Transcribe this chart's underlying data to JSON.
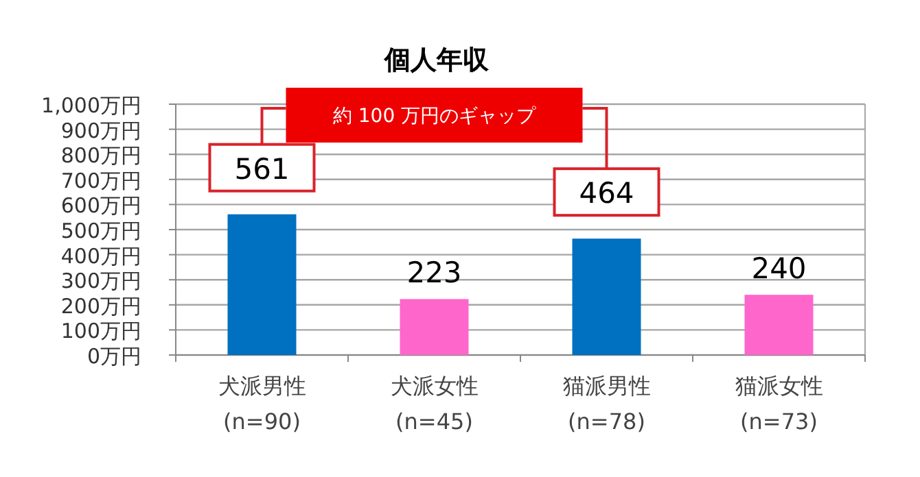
{
  "chart_data": {
    "type": "bar",
    "title": "個人年収",
    "categories": [
      "犬派男性\n(n=90)",
      "犬派女性\n(n=45)",
      "猫派男性\n(n=78)",
      "猫派女性\n(n=73)"
    ],
    "values": [
      561,
      223,
      464,
      240
    ],
    "colors": [
      "#0070c0",
      "#ff66cc",
      "#0070c0",
      "#ff66cc"
    ],
    "ylim": [
      0,
      1000
    ],
    "yticks": [
      {
        "value": 0,
        "label": "0万円"
      },
      {
        "value": 100,
        "label": "100万円"
      },
      {
        "value": 200,
        "label": "200万円"
      },
      {
        "value": 300,
        "label": "300万円"
      },
      {
        "value": 400,
        "label": "400万円"
      },
      {
        "value": 500,
        "label": "500万円"
      },
      {
        "value": 600,
        "label": "600万円"
      },
      {
        "value": 700,
        "label": "700万円"
      },
      {
        "value": 800,
        "label": "800万円"
      },
      {
        "value": 900,
        "label": "900万円"
      },
      {
        "value": 1000,
        "label": "1,000万円"
      }
    ],
    "grid": "y",
    "data_labels": true,
    "annotations": [
      "約 100 万円のギャップ"
    ]
  }
}
